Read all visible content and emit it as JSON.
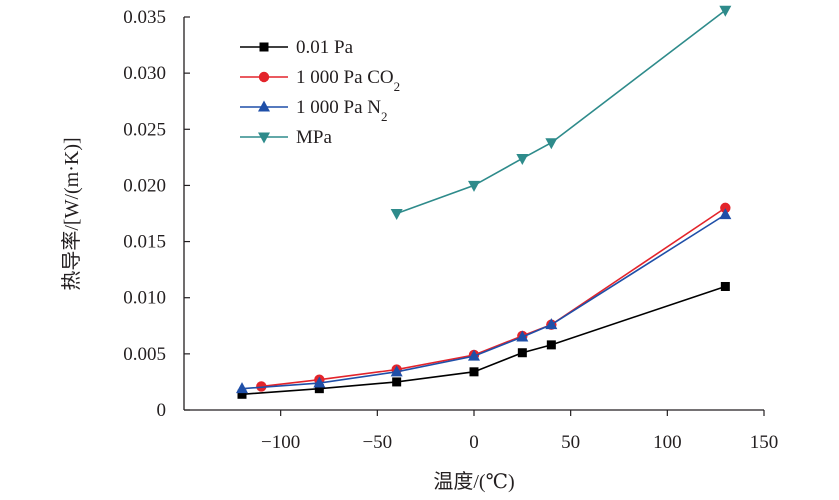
{
  "chart_data": {
    "type": "line",
    "xlabel": "温度/(℃)",
    "ylabel": "热导率/[W/(m·K)]",
    "xlim": [
      -150,
      150
    ],
    "ylim": [
      0,
      0.035
    ],
    "x_ticks": [
      -100,
      -50,
      0,
      50,
      100,
      150
    ],
    "x_tick_labels": [
      "−100",
      "−50",
      "0",
      "50",
      "100",
      "150"
    ],
    "y_ticks": [
      0,
      0.005,
      0.01,
      0.015,
      0.02,
      0.025,
      0.03,
      0.035
    ],
    "y_tick_labels": [
      "0",
      "0.005",
      "0.010",
      "0.015",
      "0.020",
      "0.025",
      "0.030",
      "0.035"
    ],
    "grid": false,
    "legend_position": "top-left",
    "series": [
      {
        "name": "0.01 Pa",
        "label_main": "0.01 Pa",
        "label_sub": "",
        "color": "#000000",
        "marker": "square",
        "x": [
          -120,
          -80,
          -40,
          0,
          25,
          40,
          130
        ],
        "y": [
          0.0014,
          0.0019,
          0.0025,
          0.0034,
          0.0051,
          0.0058,
          0.011
        ]
      },
      {
        "name": "1 000 Pa CO2",
        "label_main": "1 000 Pa CO",
        "label_sub": "2",
        "color": "#e3242b",
        "marker": "circle",
        "x": [
          -110,
          -80,
          -40,
          0,
          25,
          40,
          130
        ],
        "y": [
          0.0021,
          0.0027,
          0.0036,
          0.0049,
          0.0066,
          0.0076,
          0.018
        ]
      },
      {
        "name": "1 000 Pa N2",
        "label_main": "1 000 Pa N",
        "label_sub": "2",
        "color": "#1f4fa8",
        "marker": "triangle-up",
        "x": [
          -120,
          -80,
          -40,
          0,
          25,
          40,
          130
        ],
        "y": [
          0.0019,
          0.0024,
          0.0034,
          0.0048,
          0.0065,
          0.0076,
          0.0174
        ]
      },
      {
        "name": "MPa",
        "label_main": "MPa",
        "label_sub": "",
        "color": "#2e8b8b",
        "marker": "triangle-down",
        "x": [
          -40,
          0,
          25,
          40,
          130
        ],
        "y": [
          0.0175,
          0.02,
          0.0224,
          0.0238,
          0.0356
        ]
      }
    ]
  }
}
